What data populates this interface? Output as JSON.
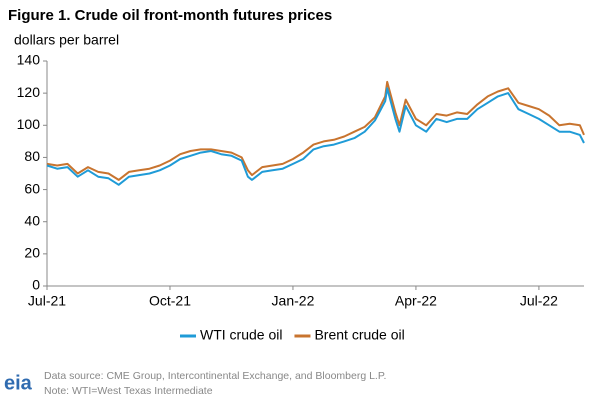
{
  "chart_data": {
    "type": "line",
    "title": "Figure 1. Crude oil front-month futures prices",
    "y_label": "dollars per barrel",
    "x": [
      0,
      0.25,
      0.5,
      0.75,
      1.0,
      1.25,
      1.5,
      1.75,
      2.0,
      2.25,
      2.5,
      2.75,
      3.0,
      3.25,
      3.5,
      3.75,
      4.0,
      4.25,
      4.5,
      4.75,
      4.9,
      5.0,
      5.25,
      5.5,
      5.75,
      6.0,
      6.25,
      6.5,
      6.75,
      7.0,
      7.25,
      7.5,
      7.75,
      8.0,
      8.25,
      8.3,
      8.5,
      8.6,
      8.75,
      9.0,
      9.25,
      9.5,
      9.75,
      10.0,
      10.25,
      10.5,
      10.75,
      11.0,
      11.25,
      11.5,
      11.75,
      12.0,
      12.25,
      12.5,
      12.75,
      13.0,
      13.1
    ],
    "series": [
      {
        "name": "WTI crude oil",
        "color": "#1f9bd7",
        "values": [
          75,
          73,
          74,
          68,
          72,
          68,
          67,
          63,
          68,
          69,
          70,
          72,
          75,
          79,
          81,
          83,
          84,
          82,
          81,
          78,
          68,
          66,
          71,
          72,
          73,
          76,
          79,
          85,
          87,
          88,
          90,
          92,
          96,
          103,
          115,
          123,
          104,
          96,
          112,
          100,
          96,
          104,
          102,
          104,
          104,
          110,
          114,
          118,
          120,
          110,
          107,
          104,
          100,
          96,
          96,
          94,
          89
        ]
      },
      {
        "name": "Brent crude oil",
        "color": "#c8742f",
        "values": [
          76,
          75,
          76,
          70,
          74,
          71,
          70,
          66,
          71,
          72,
          73,
          75,
          78,
          82,
          84,
          85,
          85,
          84,
          83,
          80,
          72,
          69,
          74,
          75,
          76,
          79,
          83,
          88,
          90,
          91,
          93,
          96,
          99,
          105,
          118,
          127,
          108,
          100,
          116,
          104,
          100,
          107,
          106,
          108,
          107,
          113,
          118,
          121,
          123,
          114,
          112,
          110,
          106,
          100,
          101,
          100,
          94
        ]
      }
    ],
    "xlim": [
      0,
      13.1
    ],
    "xticks": [
      {
        "value": 0,
        "label": "Jul-21"
      },
      {
        "value": 3,
        "label": "Oct-21"
      },
      {
        "value": 6,
        "label": "Jan-22"
      },
      {
        "value": 9,
        "label": "Apr-22"
      },
      {
        "value": 12,
        "label": "Jul-22"
      }
    ],
    "ylim": [
      0,
      140
    ],
    "yticks": [
      0,
      20,
      40,
      60,
      80,
      100,
      120,
      140
    ],
    "grid": false,
    "legend": "bottom",
    "source": "Data source: CME Group, Intercontinental Exchange, and Bloomberg L.P.",
    "note": "Note: WTI=West Texas Intermediate",
    "logo": "eia"
  }
}
